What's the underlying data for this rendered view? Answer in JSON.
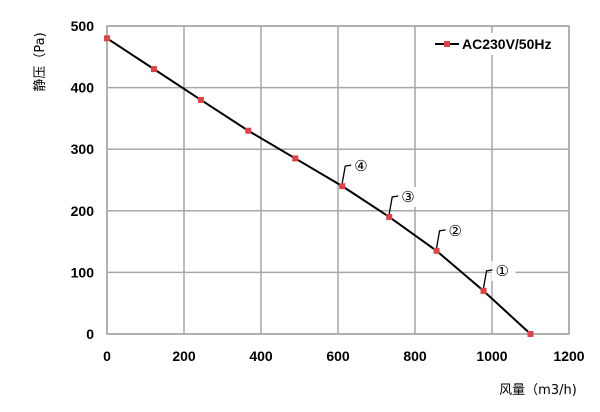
{
  "chart_data": {
    "type": "line",
    "xlabel": "风量（m3/h)",
    "ylabel": "静压（Pa)",
    "xlim": [
      0,
      1200
    ],
    "ylim": [
      0,
      500
    ],
    "xticks": [
      "0",
      "200",
      "400",
      "600",
      "800",
      "1000",
      "1200"
    ],
    "yticks": [
      "0",
      "100",
      "200",
      "300",
      "400",
      "500"
    ],
    "grid": true,
    "legend_position": "top-right",
    "series": [
      {
        "name": "AC230V/50Hz",
        "color": "#000000",
        "marker_color": "#d9434a",
        "x": [
          0,
          122,
          244,
          367,
          489,
          611,
          733,
          856,
          978,
          1100
        ],
        "y": [
          480,
          430,
          380,
          330,
          285,
          240,
          190,
          135,
          70,
          0
        ]
      }
    ],
    "annotations": [
      {
        "text": "①",
        "x": 978,
        "y": 70
      },
      {
        "text": "②",
        "x": 856,
        "y": 135
      },
      {
        "text": "③",
        "x": 733,
        "y": 190
      },
      {
        "text": "④",
        "x": 611,
        "y": 240
      }
    ]
  }
}
